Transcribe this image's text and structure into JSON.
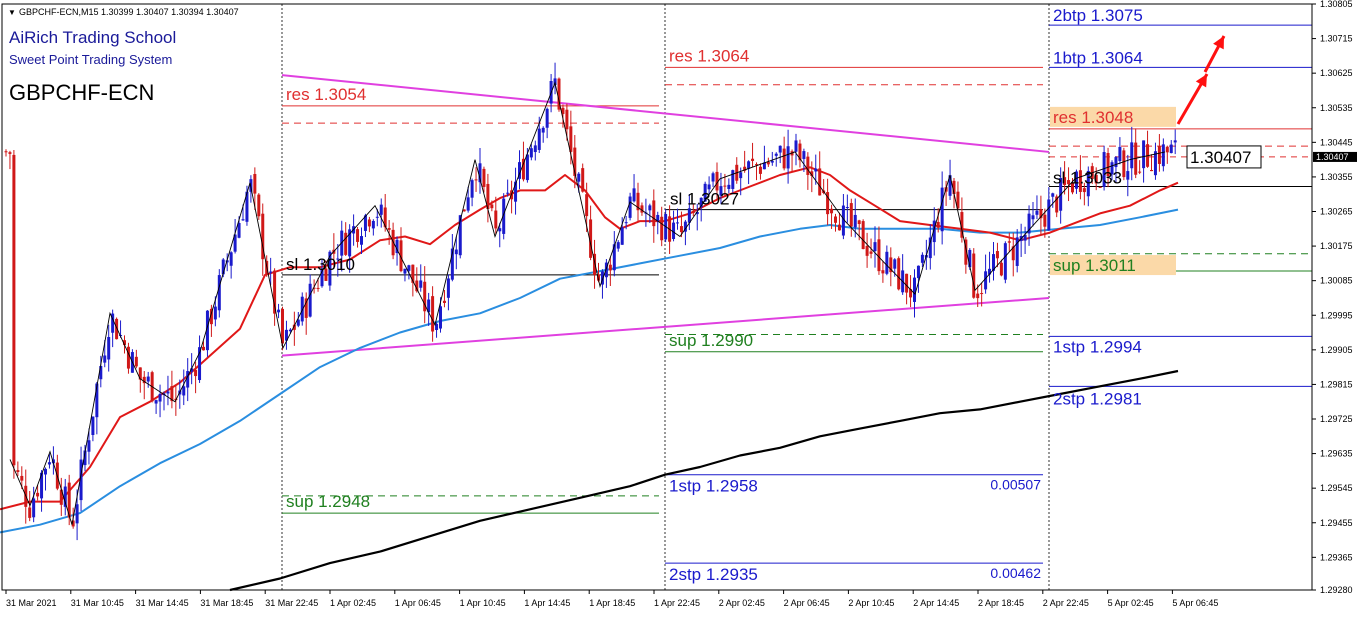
{
  "header": {
    "symbol_line": "GBPCHF-ECN,M15  1.30399 1.30407 1.30394 1.30407",
    "brand": "AiRich Trading School",
    "system": "Sweet Point Trading System",
    "symbol_big": "GBPCHF-ECN"
  },
  "colors": {
    "bull": "#1a1acc",
    "bear": "#d01818",
    "res": "#e03030",
    "sup": "#208020",
    "tp": "#1a1acc",
    "magenta": "#e040e0",
    "ma_fast": "#e01818",
    "ma_mid": "#2a8ee0",
    "ma_slow": "#000000",
    "label_bg": "#fbd9a8"
  },
  "chart_data": {
    "type": "candlestick",
    "title": "GBPCHF-ECN,M15",
    "ylim": [
      1.2928,
      1.30805
    ],
    "y_ticks": [
      "1.30805",
      "1.30715",
      "1.30625",
      "1.30535",
      "1.30445",
      "1.30355",
      "1.30265",
      "1.30175",
      "1.30085",
      "1.29995",
      "1.29905",
      "1.29815",
      "1.29725",
      "1.29635",
      "1.29545",
      "1.29455",
      "1.29365",
      "1.29280"
    ],
    "x_ticks": [
      "31 Mar 2021",
      "31 Mar 10:45",
      "31 Mar 14:45",
      "31 Mar 18:45",
      "31 Mar 22:45",
      "1 Apr 02:45",
      "1 Apr 06:45",
      "1 Apr 10:45",
      "1 Apr 14:45",
      "1 Apr 18:45",
      "1 Apr 22:45",
      "2 Apr 02:45",
      "2 Apr 06:45",
      "2 Apr 10:45",
      "2 Apr 14:45",
      "2 Apr 18:45",
      "2 Apr 22:45",
      "5 Apr 02:45",
      "5 Apr 06:45"
    ],
    "current_price": "1.30407",
    "levels": [
      {
        "seg": 1,
        "price": 1.3054,
        "label": "res 1.3054",
        "kind": "res"
      },
      {
        "seg": 1,
        "price": 1.301,
        "label": "sl 1.3010",
        "kind": "sl"
      },
      {
        "seg": 1,
        "price": 1.2948,
        "label": "sup 1.2948",
        "kind": "sup"
      },
      {
        "seg": 2,
        "price": 1.3064,
        "label": "res 1.3064",
        "kind": "res"
      },
      {
        "seg": 2,
        "price": 1.3027,
        "label": "sl 1.3027",
        "kind": "sl"
      },
      {
        "seg": 2,
        "price": 1.299,
        "label": "sup 1.2990",
        "kind": "sup"
      },
      {
        "seg": 2,
        "price": 1.2958,
        "label": "1stp 1.2958",
        "kind": "tp"
      },
      {
        "seg": 2,
        "price": 1.2935,
        "label": "2stp 1.2935",
        "kind": "tp"
      },
      {
        "seg": 3,
        "price": 1.3075,
        "label": "2btp 1.3075",
        "kind": "tp"
      },
      {
        "seg": 3,
        "price": 1.3064,
        "label": "1btp 1.3064",
        "kind": "tp"
      },
      {
        "seg": 3,
        "price": 1.3048,
        "label": "res 1.3048",
        "kind": "res"
      },
      {
        "seg": 3,
        "price": 1.3033,
        "label": "sl 1.3033",
        "kind": "sl"
      },
      {
        "seg": 3,
        "price": 1.3011,
        "label": "sup 1.3011",
        "kind": "sup"
      },
      {
        "seg": 3,
        "price": 1.2994,
        "label": "1stp 1.2994",
        "kind": "tp"
      },
      {
        "seg": 3,
        "price": 1.2981,
        "label": "2stp 1.2981",
        "kind": "tp"
      }
    ],
    "annotations": [
      {
        "text": "0.00507",
        "near": "1stp 1.2958"
      },
      {
        "text": "0.00462",
        "near": "2stp 1.2935"
      }
    ],
    "trend_lines": [
      {
        "name": "upper",
        "from": 1.3062,
        "to": 1.3042
      },
      {
        "name": "lower",
        "from": 1.2989,
        "to": 1.3004
      }
    ],
    "ma_fast_path": [
      [
        0,
        1.2949
      ],
      [
        30,
        1.2951
      ],
      [
        60,
        1.2951
      ],
      [
        90,
        1.296
      ],
      [
        120,
        1.2973
      ],
      [
        150,
        1.2977
      ],
      [
        180,
        1.2982
      ],
      [
        210,
        1.2989
      ],
      [
        240,
        1.2996
      ],
      [
        265,
        1.301
      ],
      [
        290,
        1.3012
      ],
      [
        320,
        1.3012
      ],
      [
        350,
        1.3014
      ],
      [
        380,
        1.3019
      ],
      [
        405,
        1.302
      ],
      [
        430,
        1.3018
      ],
      [
        455,
        1.3023
      ],
      [
        480,
        1.3027
      ],
      [
        500,
        1.303
      ],
      [
        520,
        1.3032
      ],
      [
        545,
        1.3032
      ],
      [
        565,
        1.3036
      ],
      [
        585,
        1.3032
      ],
      [
        605,
        1.3025
      ],
      [
        620,
        1.3022
      ],
      [
        640,
        1.3024
      ],
      [
        665,
        1.3024
      ],
      [
        690,
        1.3026
      ],
      [
        720,
        1.303
      ],
      [
        750,
        1.3033
      ],
      [
        780,
        1.3036
      ],
      [
        810,
        1.3038
      ],
      [
        830,
        1.3036
      ],
      [
        850,
        1.3032
      ],
      [
        875,
        1.3028
      ],
      [
        900,
        1.3024
      ],
      [
        930,
        1.3023
      ],
      [
        960,
        1.3022
      ],
      [
        990,
        1.3021
      ],
      [
        1020,
        1.3019
      ],
      [
        1050,
        1.3021
      ],
      [
        1080,
        1.3024
      ],
      [
        1100,
        1.3026
      ],
      [
        1130,
        1.3028
      ],
      [
        1160,
        1.3032
      ],
      [
        1178,
        1.3034
      ]
    ],
    "ma_mid_path": [
      [
        0,
        1.2943
      ],
      [
        40,
        1.2945
      ],
      [
        80,
        1.2948
      ],
      [
        120,
        1.2955
      ],
      [
        160,
        1.2961
      ],
      [
        200,
        1.2966
      ],
      [
        240,
        1.2972
      ],
      [
        280,
        1.2979
      ],
      [
        320,
        1.2986
      ],
      [
        360,
        1.2991
      ],
      [
        400,
        1.2995
      ],
      [
        440,
        1.2998
      ],
      [
        480,
        1.3
      ],
      [
        520,
        1.3004
      ],
      [
        560,
        1.3009
      ],
      [
        600,
        1.3011
      ],
      [
        640,
        1.3013
      ],
      [
        680,
        1.3015
      ],
      [
        720,
        1.3017
      ],
      [
        760,
        1.302
      ],
      [
        800,
        1.3022
      ],
      [
        830,
        1.3023
      ],
      [
        860,
        1.3022
      ],
      [
        900,
        1.3022
      ],
      [
        940,
        1.3022
      ],
      [
        980,
        1.3021
      ],
      [
        1020,
        1.3021
      ],
      [
        1060,
        1.3022
      ],
      [
        1100,
        1.3023
      ],
      [
        1140,
        1.3025
      ],
      [
        1178,
        1.3027
      ]
    ],
    "ma_slow_path": [
      [
        230,
        1.2928
      ],
      [
        280,
        1.2931
      ],
      [
        330,
        1.2935
      ],
      [
        380,
        1.2938
      ],
      [
        430,
        1.2942
      ],
      [
        480,
        1.2946
      ],
      [
        530,
        1.2949
      ],
      [
        580,
        1.2952
      ],
      [
        630,
        1.2955
      ],
      [
        665,
        1.2958
      ],
      [
        700,
        1.296
      ],
      [
        740,
        1.2963
      ],
      [
        780,
        1.2965
      ],
      [
        820,
        1.2968
      ],
      [
        860,
        1.297
      ],
      [
        900,
        1.2972
      ],
      [
        940,
        1.2974
      ],
      [
        980,
        1.2975
      ],
      [
        1020,
        1.2977
      ],
      [
        1060,
        1.2979
      ],
      [
        1100,
        1.2981
      ],
      [
        1140,
        1.2983
      ],
      [
        1178,
        1.2985
      ]
    ],
    "zigzag_path": [
      [
        10,
        1.2962
      ],
      [
        30,
        1.295
      ],
      [
        50,
        1.2964
      ],
      [
        72,
        1.2945
      ],
      [
        110,
        1.3
      ],
      [
        140,
        1.2983
      ],
      [
        175,
        1.2977
      ],
      [
        200,
        1.299
      ],
      [
        250,
        1.3034
      ],
      [
        283,
        1.2991
      ],
      [
        330,
        1.3015
      ],
      [
        375,
        1.3028
      ],
      [
        435,
        1.2997
      ],
      [
        475,
        1.304
      ],
      [
        495,
        1.302
      ],
      [
        555,
        1.306
      ],
      [
        600,
        1.3007
      ],
      [
        630,
        1.3029
      ],
      [
        680,
        1.302
      ],
      [
        720,
        1.3035
      ],
      [
        795,
        1.3042
      ],
      [
        845,
        1.3024
      ],
      [
        885,
        1.3013
      ],
      [
        915,
        1.3005
      ],
      [
        950,
        1.3036
      ],
      [
        975,
        1.3006
      ],
      [
        1030,
        1.3022
      ],
      [
        1075,
        1.3035
      ],
      [
        1130,
        1.304
      ],
      [
        1165,
        1.3042
      ]
    ]
  }
}
